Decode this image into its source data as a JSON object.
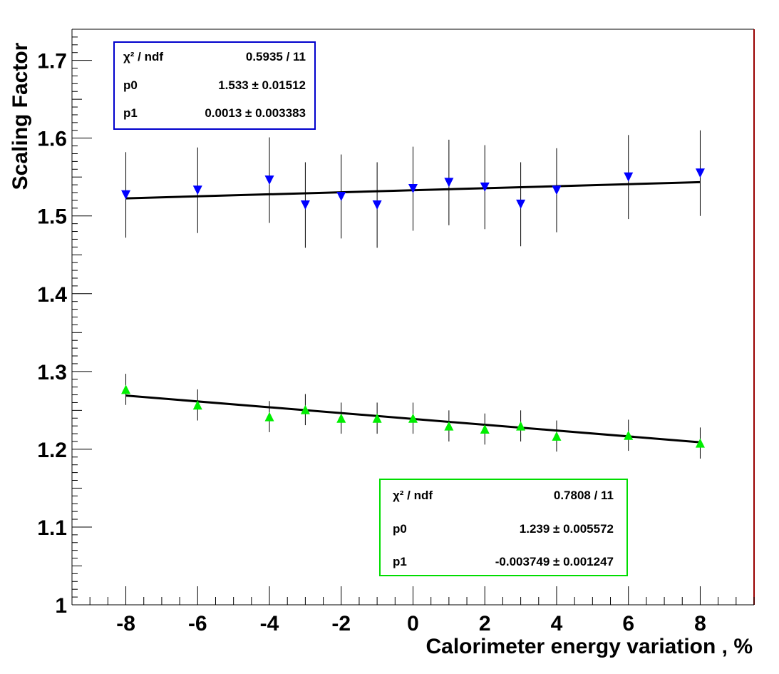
{
  "chart_data": {
    "type": "scatter",
    "xlabel": "Calorimeter energy variation , %",
    "ylabel": "Scaling Factor",
    "xlim": [
      -9.5,
      9.5
    ],
    "ylim": [
      1.0,
      1.74
    ],
    "x_ticks": [
      -8,
      -6,
      -4,
      -2,
      0,
      2,
      4,
      6,
      8
    ],
    "x_tick_labels": [
      "-8",
      "-6",
      "-4",
      "-2",
      "0",
      "2",
      "4",
      "6",
      "8"
    ],
    "y_ticks": [
      1.0,
      1.1,
      1.2,
      1.3,
      1.4,
      1.5,
      1.6,
      1.7
    ],
    "y_tick_labels": [
      "1",
      "1.1",
      "1.2",
      "1.3",
      "1.4",
      "1.5",
      "1.6",
      "1.7"
    ],
    "grid": false,
    "series": [
      {
        "marker": "triangle-down",
        "color": "#0000ff",
        "x": [
          -8,
          -6,
          -4,
          -3,
          -2,
          -1,
          0,
          1,
          2,
          3,
          4,
          6,
          8
        ],
        "y": [
          1.527,
          1.533,
          1.546,
          1.514,
          1.525,
          1.514,
          1.535,
          1.543,
          1.537,
          1.515,
          1.533,
          1.55,
          1.555
        ],
        "err": [
          0.055,
          0.055,
          0.055,
          0.055,
          0.054,
          0.055,
          0.054,
          0.055,
          0.054,
          0.054,
          0.054,
          0.054,
          0.055
        ],
        "fit": {
          "p0": 1.533,
          "p1": 0.0013
        },
        "stats": [
          {
            "label": "χ² / ndf",
            "value": "0.5935 / 11"
          },
          {
            "label": "p0",
            "value": "1.533 ± 0.01512"
          },
          {
            "label": "p1",
            "value": "0.0013 ± 0.003383"
          }
        ]
      },
      {
        "marker": "triangle-up",
        "color": "#00ee00",
        "x": [
          -8,
          -6,
          -4,
          -3,
          -2,
          -1,
          0,
          1,
          2,
          3,
          4,
          6,
          8
        ],
        "y": [
          1.277,
          1.257,
          1.242,
          1.251,
          1.24,
          1.24,
          1.24,
          1.23,
          1.226,
          1.23,
          1.217,
          1.218,
          1.208
        ],
        "err": [
          0.02,
          0.02,
          0.02,
          0.02,
          0.02,
          0.02,
          0.02,
          0.02,
          0.02,
          0.02,
          0.02,
          0.02,
          0.02
        ],
        "fit": {
          "p0": 1.239,
          "p1": -0.003749
        },
        "stats": [
          {
            "label": "χ² / ndf",
            "value": "0.7808 / 11"
          },
          {
            "label": "p0",
            "value": "1.239 ± 0.005572"
          },
          {
            "label": "p1",
            "value": "-0.003749 ± 0.001247"
          }
        ]
      }
    ],
    "colors": {
      "frame_right": "#990000",
      "box_blue": "#0000cc",
      "box_green": "#00dd00"
    }
  }
}
